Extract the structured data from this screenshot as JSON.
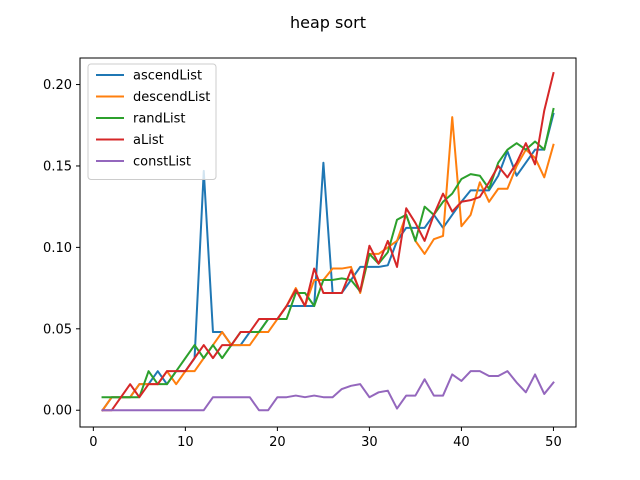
{
  "chart_data": {
    "type": "line",
    "title": "heap sort",
    "xlabel": "",
    "ylabel": "",
    "xlim": [
      -1.45,
      52.45
    ],
    "ylim": [
      -0.0103,
      0.2163
    ],
    "xticks": [
      0,
      10,
      20,
      30,
      40,
      50
    ],
    "xtick_labels": [
      "0",
      "10",
      "20",
      "30",
      "40",
      "50"
    ],
    "yticks": [
      0.0,
      0.05,
      0.1,
      0.15,
      0.2
    ],
    "ytick_labels": [
      "0.00",
      "0.05",
      "0.10",
      "0.15",
      "0.20"
    ],
    "grid": false,
    "legend_position": "top-left",
    "x": [
      1,
      2,
      3,
      4,
      5,
      6,
      7,
      8,
      9,
      10,
      11,
      12,
      13,
      14,
      15,
      16,
      17,
      18,
      19,
      20,
      21,
      22,
      23,
      24,
      25,
      26,
      27,
      28,
      29,
      30,
      31,
      32,
      33,
      34,
      35,
      36,
      37,
      38,
      39,
      40,
      41,
      42,
      43,
      44,
      45,
      46,
      47,
      48,
      49,
      50
    ],
    "series": [
      {
        "name": "ascendList",
        "color": "#1f77b4",
        "values": [
          0.0,
          0.008,
          0.008,
          0.008,
          0.016,
          0.016,
          0.024,
          0.016,
          0.024,
          0.024,
          0.032,
          0.147,
          0.048,
          0.048,
          0.04,
          0.04,
          0.048,
          0.048,
          0.056,
          0.056,
          0.064,
          0.064,
          0.064,
          0.064,
          0.152,
          0.072,
          0.072,
          0.08,
          0.088,
          0.088,
          0.088,
          0.089,
          0.104,
          0.112,
          0.112,
          0.112,
          0.12,
          0.112,
          0.12,
          0.128,
          0.135,
          0.135,
          0.135,
          0.144,
          0.159,
          0.144,
          0.152,
          0.16,
          0.16,
          0.182
        ]
      },
      {
        "name": "descendList",
        "color": "#ff7f0e",
        "values": [
          0.0,
          0.008,
          0.008,
          0.008,
          0.016,
          0.016,
          0.016,
          0.024,
          0.016,
          0.024,
          0.024,
          0.032,
          0.04,
          0.048,
          0.04,
          0.04,
          0.04,
          0.048,
          0.048,
          0.056,
          0.064,
          0.075,
          0.064,
          0.08,
          0.08,
          0.087,
          0.087,
          0.088,
          0.072,
          0.096,
          0.096,
          0.1,
          0.104,
          0.12,
          0.104,
          0.096,
          0.105,
          0.107,
          0.18,
          0.113,
          0.12,
          0.14,
          0.128,
          0.136,
          0.136,
          0.15,
          0.16,
          0.155,
          0.143,
          0.163
        ]
      },
      {
        "name": "randList",
        "color": "#2ca02c",
        "values": [
          0.008,
          0.008,
          0.008,
          0.008,
          0.008,
          0.024,
          0.016,
          0.016,
          0.024,
          0.032,
          0.04,
          0.032,
          0.04,
          0.032,
          0.04,
          0.048,
          0.048,
          0.048,
          0.056,
          0.056,
          0.056,
          0.072,
          0.072,
          0.064,
          0.08,
          0.08,
          0.081,
          0.08,
          0.073,
          0.096,
          0.09,
          0.097,
          0.117,
          0.12,
          0.104,
          0.125,
          0.12,
          0.128,
          0.133,
          0.142,
          0.145,
          0.144,
          0.136,
          0.152,
          0.16,
          0.164,
          0.16,
          0.165,
          0.16,
          0.185
        ]
      },
      {
        "name": "aList",
        "color": "#d62728",
        "values": [
          0.0,
          0.0,
          0.008,
          0.016,
          0.008,
          0.016,
          0.016,
          0.024,
          0.024,
          0.024,
          0.032,
          0.04,
          0.032,
          0.04,
          0.04,
          0.048,
          0.048,
          0.056,
          0.056,
          0.056,
          0.064,
          0.074,
          0.064,
          0.087,
          0.072,
          0.072,
          0.072,
          0.086,
          0.073,
          0.101,
          0.09,
          0.104,
          0.088,
          0.124,
          0.115,
          0.104,
          0.12,
          0.133,
          0.122,
          0.128,
          0.129,
          0.131,
          0.14,
          0.15,
          0.143,
          0.152,
          0.164,
          0.151,
          0.184,
          0.207
        ]
      },
      {
        "name": "constList",
        "color": "#9467bd",
        "values": [
          0.0,
          0.0,
          0.0,
          0.0,
          0.0,
          0.0,
          0.0,
          0.0,
          0.0,
          0.0,
          0.0,
          0.0,
          0.008,
          0.008,
          0.008,
          0.008,
          0.008,
          0.0,
          0.0,
          0.008,
          0.008,
          0.009,
          0.008,
          0.009,
          0.008,
          0.008,
          0.013,
          0.015,
          0.016,
          0.008,
          0.011,
          0.012,
          0.001,
          0.009,
          0.009,
          0.019,
          0.009,
          0.009,
          0.022,
          0.018,
          0.024,
          0.024,
          0.021,
          0.021,
          0.024,
          0.017,
          0.011,
          0.022,
          0.01,
          0.017
        ]
      }
    ]
  }
}
